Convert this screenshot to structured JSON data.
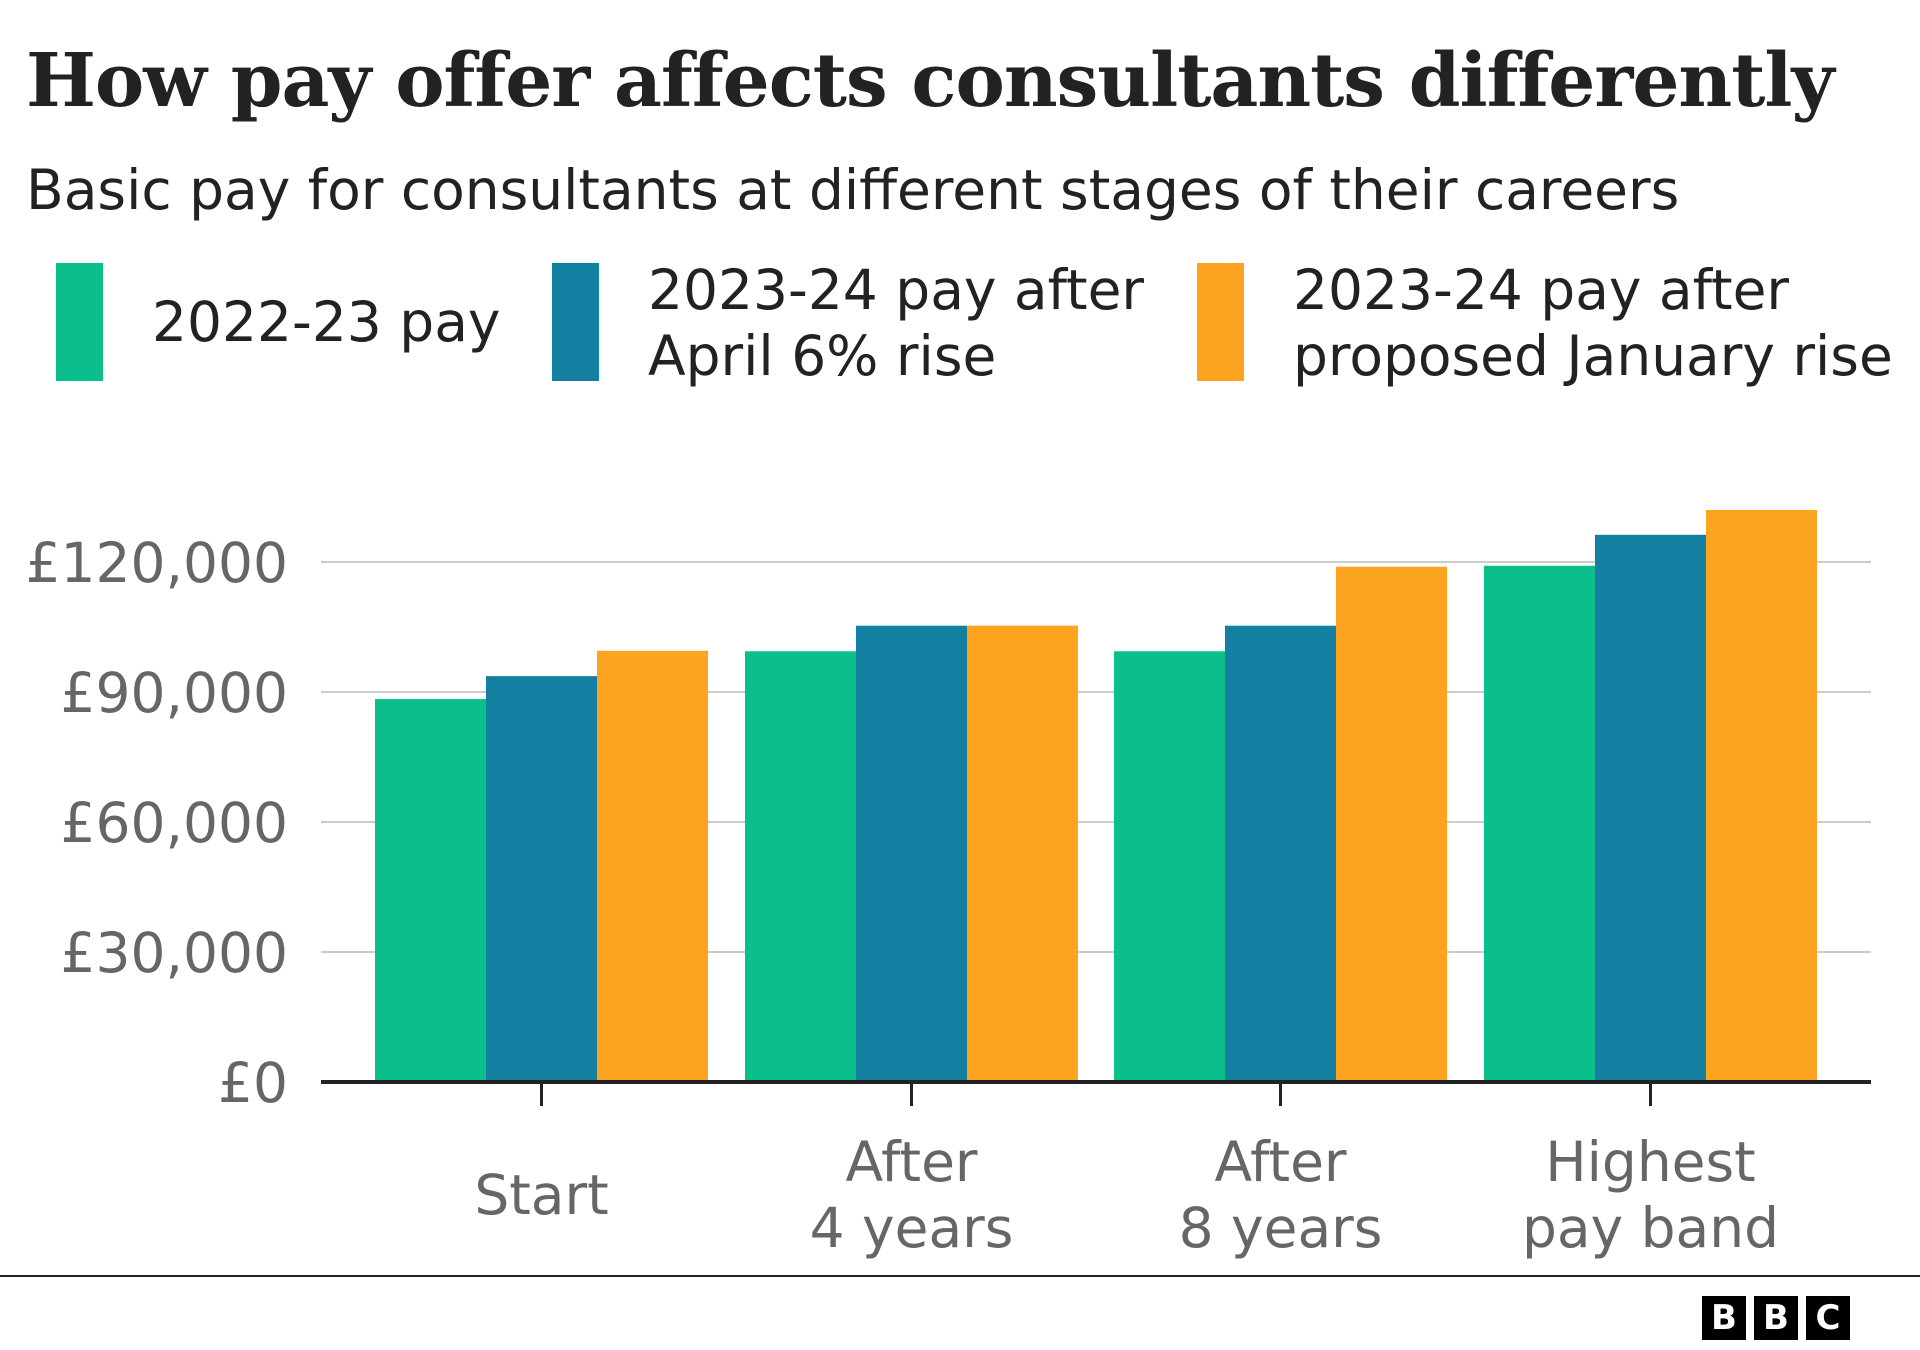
{
  "chart_data": {
    "type": "bar",
    "title": "How pay offer affects consultants differently",
    "subtitle": "Basic pay for consultants at different stages of their careers",
    "categories": [
      [
        "Start"
      ],
      [
        "After",
        "4 years"
      ],
      [
        "After",
        "8 years"
      ],
      [
        "Highest",
        "pay band"
      ]
    ],
    "series": [
      {
        "name": "2022-23 pay",
        "legend_lines": [
          "2022-23 pay"
        ],
        "color": "#0bbf8c",
        "values": [
          88364,
          99400,
          99400,
          119133
        ]
      },
      {
        "name": "2023-24 pay after April 6% rise",
        "legend_lines": [
          "2023-24 pay after",
          "April 6% rise"
        ],
        "color": "#1380a1",
        "values": [
          93666,
          105300,
          105300,
          126281
        ]
      },
      {
        "name": "2023-24 pay after proposed January rise",
        "legend_lines": [
          "2023-24 pay after",
          "proposed January rise"
        ],
        "color": "#fca31f",
        "values": [
          99500,
          105300,
          118900,
          132000
        ]
      }
    ],
    "yticks": [
      0,
      30000,
      60000,
      90000,
      120000
    ],
    "ytick_labels": [
      "£0",
      "£30,000",
      "£60,000",
      "£90,000",
      "£120,000"
    ],
    "ylim": [
      0,
      132000
    ],
    "xlabel": "",
    "ylabel": "",
    "grid": true,
    "legend_position": "top"
  },
  "source_logo": "BBC",
  "logo_letters": [
    "B",
    "B",
    "C"
  ]
}
